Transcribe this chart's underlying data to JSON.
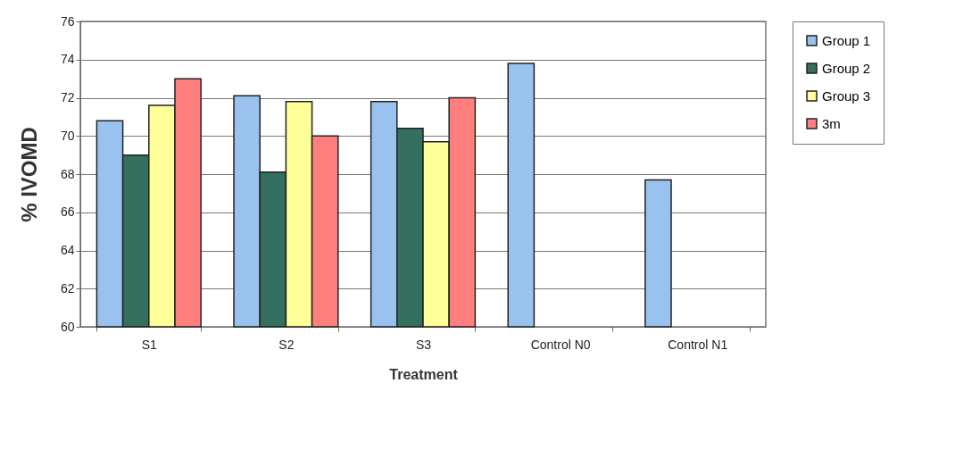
{
  "chart_data": {
    "type": "bar",
    "xlabel": "Treatment",
    "ylabel": "% IVOMD",
    "categories": [
      "S1",
      "S2",
      "S3",
      "Control N0",
      "Control N1"
    ],
    "series": [
      {
        "name": "Group 1",
        "color": "#99c2ee",
        "values": [
          70.8,
          72.1,
          71.8,
          73.8,
          67.7
        ]
      },
      {
        "name": "Group 2",
        "color": "#33705f",
        "values": [
          69.0,
          68.1,
          70.4,
          null,
          null
        ]
      },
      {
        "name": "Group 3",
        "color": "#ffff99",
        "values": [
          71.6,
          71.8,
          69.7,
          null,
          null
        ]
      },
      {
        "name": "3m",
        "color": "#ff7f7f",
        "values": [
          73.0,
          70.0,
          72.0,
          null,
          null
        ]
      }
    ],
    "ylim": [
      60,
      76
    ],
    "yticks": [
      60,
      62,
      64,
      66,
      68,
      70,
      72,
      74,
      76
    ],
    "grid": "y",
    "legend": "right"
  }
}
